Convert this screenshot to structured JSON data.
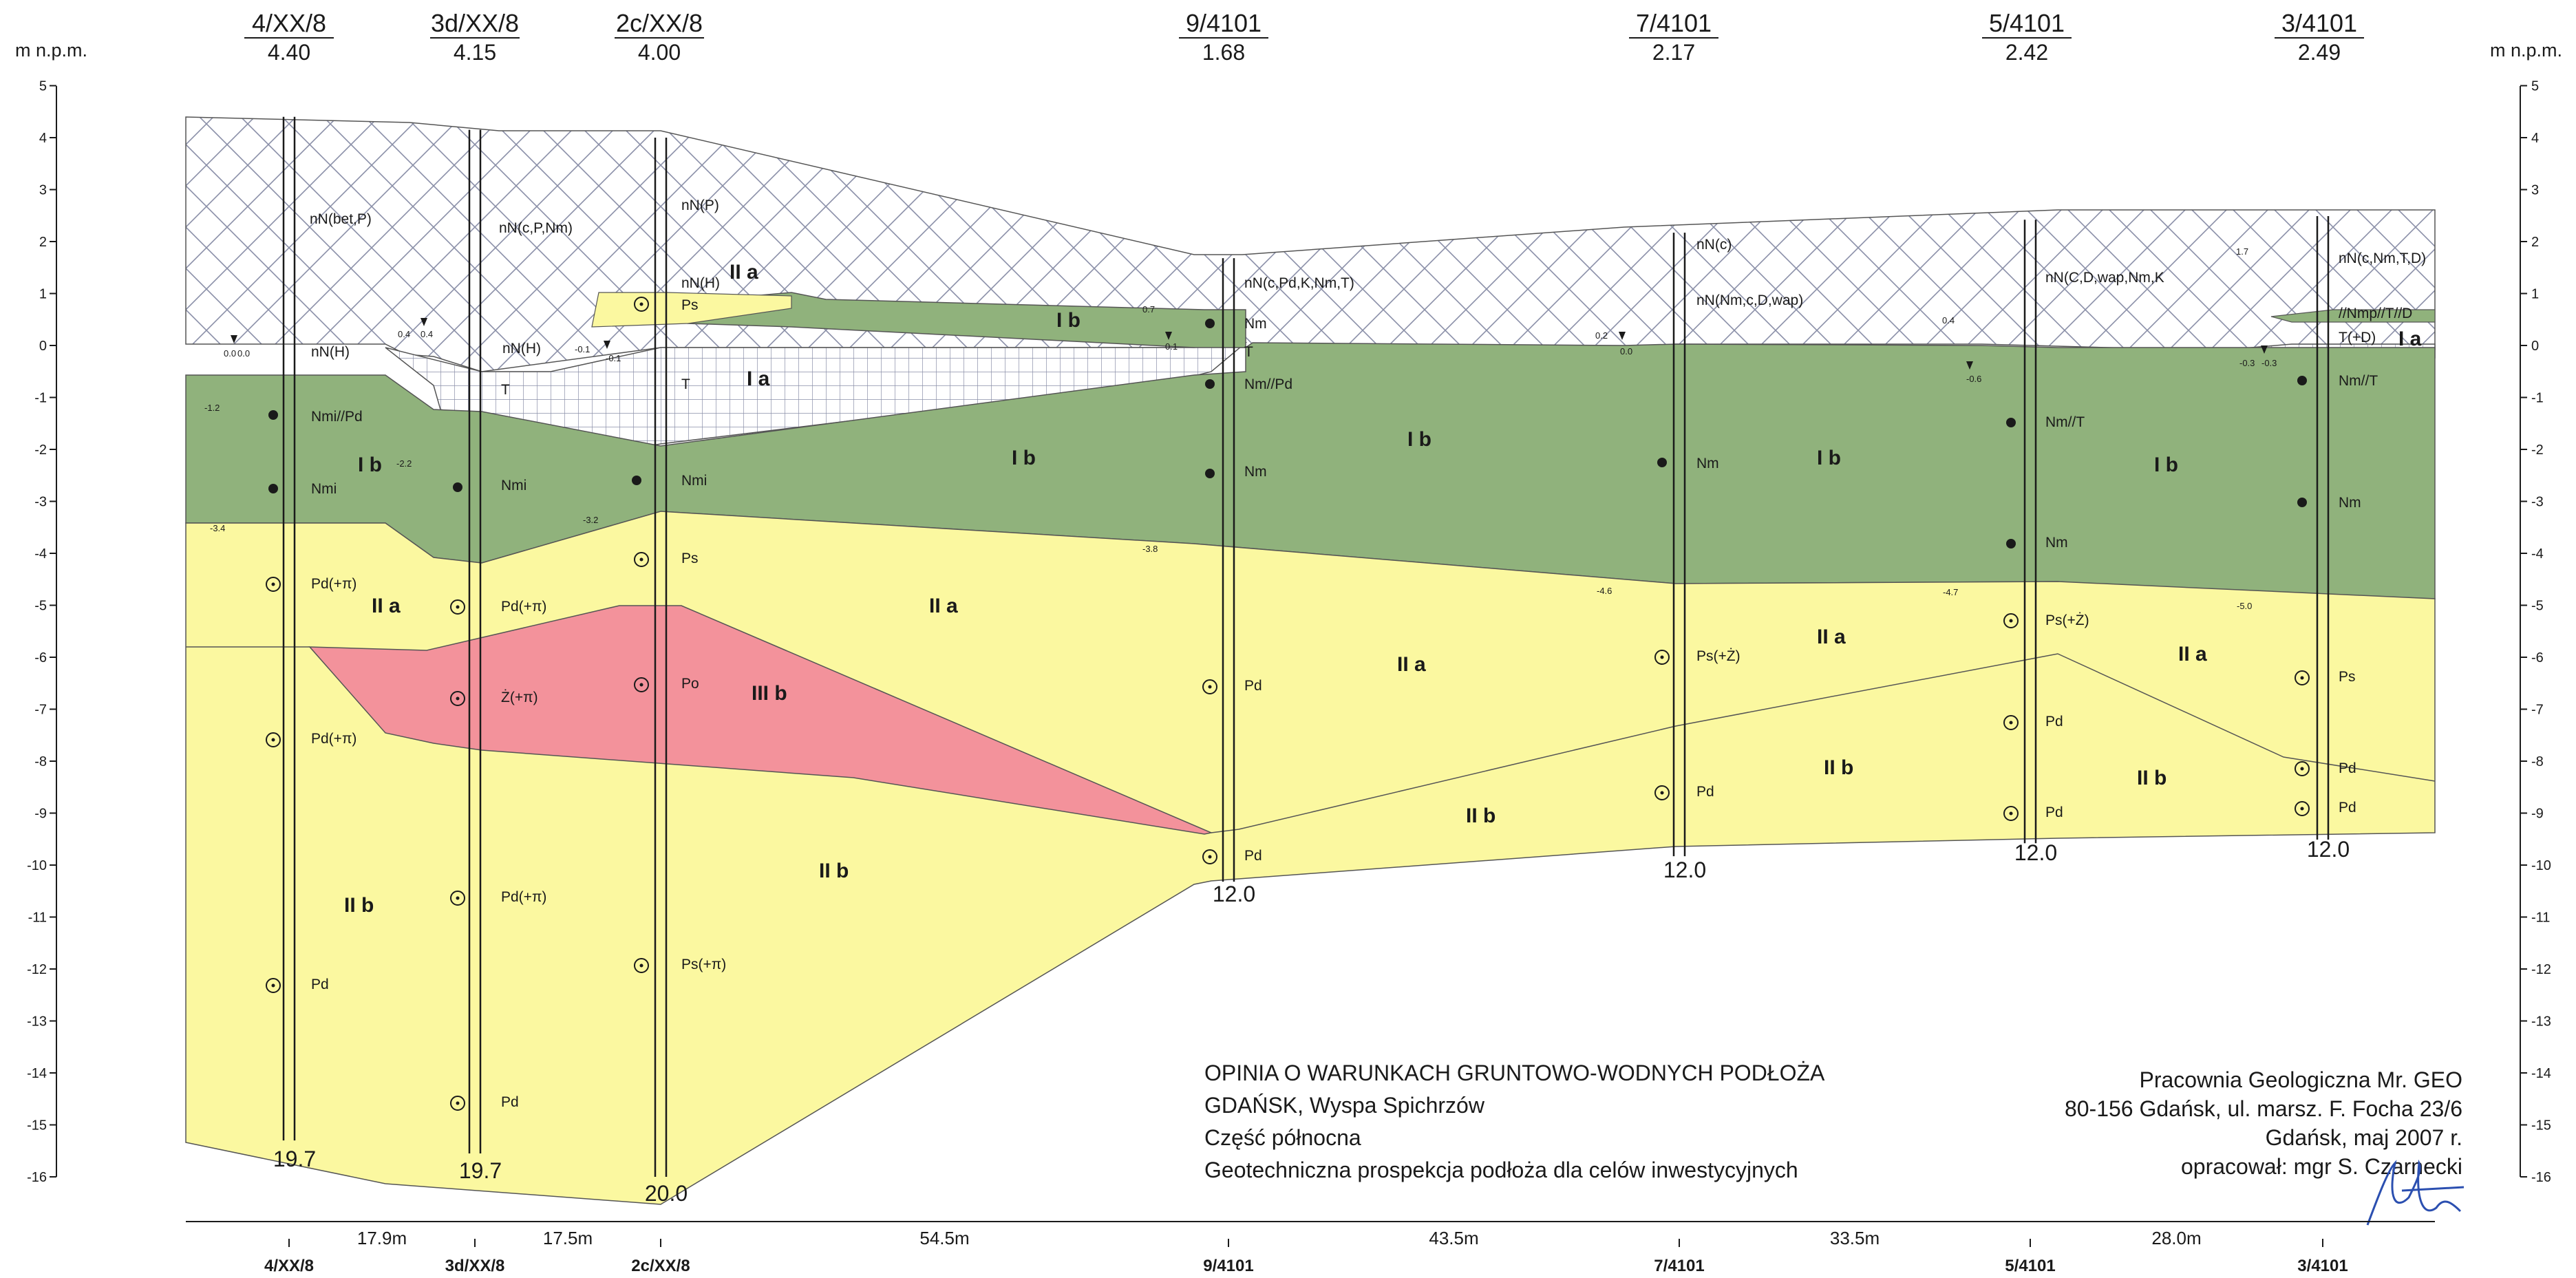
{
  "axis": {
    "left_label": "m n.p.m.",
    "right_label": "m n.p.m.",
    "range": [
      -16,
      5
    ],
    "ticks": [
      "5",
      "4",
      "3",
      "2",
      "1",
      "0",
      "-1",
      "-2",
      "-3",
      "-4",
      "-5",
      "-6",
      "-7",
      "-8",
      "-9",
      "-10",
      "-11",
      "-12",
      "-13",
      "-14",
      "-15",
      "-16"
    ]
  },
  "colors": {
    "fill_layer": "#ffffff",
    "Ia": "#ffffff",
    "Ib": "#90b27c",
    "IIa": "#fbf8a0",
    "IIb": "#fbf8a0",
    "IIIb": "#f3929b",
    "ink": "#1a1a1a",
    "signature": "#2b4fb0"
  },
  "boreholes": [
    {
      "id": "4/XX/8",
      "elev": "4.40",
      "depth": "19.7",
      "spacing_after": "17.9m"
    },
    {
      "id": "3d/XX/8",
      "elev": "4.15",
      "depth": "19.7",
      "spacing_after": "17.5m"
    },
    {
      "id": "2c/XX/8",
      "elev": "4.00",
      "depth": "20.0",
      "spacing_after": "54.5m"
    },
    {
      "id": "9/4101",
      "elev": "1.68",
      "depth": "12.0",
      "spacing_after": "43.5m"
    },
    {
      "id": "7/4101",
      "elev": "2.17",
      "depth": "12.0",
      "spacing_after": "33.5m"
    },
    {
      "id": "5/4101",
      "elev": "2.42",
      "depth": "12.0",
      "spacing_after": "28.0m"
    },
    {
      "id": "3/4101",
      "elev": "2.49",
      "depth": "12.0",
      "spacing_after": ""
    }
  ],
  "zones": [
    "I a",
    "I b",
    "II a",
    "II b",
    "III b"
  ],
  "water_marks": [
    "0.0",
    "0.0",
    "0.4",
    "0.4",
    "-0.1",
    "-0.1",
    "0.7",
    "0.1",
    "0.2",
    "0.0",
    "0.4",
    "-0.6",
    "1.7",
    "-0.3",
    "-0.3",
    "-1.2",
    "-2.2",
    "-3.2",
    "-3.4",
    "-3.8",
    "-4.6",
    "-4.7",
    "-5.0"
  ],
  "soil_labels": [
    "nN(bet,P)",
    "nN(c,P,Nm)",
    "nN(P)",
    "nN(H)",
    "nN(H)",
    "nN(H)",
    "T",
    "T",
    "Ps",
    "Nmi//Pd",
    "Nmi",
    "Nmi",
    "Nmi",
    "Ps",
    "Pd(+π)",
    "Pd(+π)",
    "Ż(+π)",
    "Po",
    "Pd(+π)",
    "Pd(+π)",
    "Ps(+π)",
    "Pd",
    "Pd",
    "nN(c,Pd,K,Nm,T)",
    "Nm",
    "T",
    "Nm//Pd",
    "Nm",
    "Pd",
    "Pd",
    "nN(c)",
    "nN(Nm,c,D,wap)",
    "Nm",
    "Ps(+Ż)",
    "Pd",
    "nN(C,D,wap,Nm,K",
    "Nm//T",
    "Nm",
    "Ps(+Ż)",
    "Pd",
    "Pd",
    "nN(c,Nm,T,D)",
    "//Nmp//T//D",
    "T(+D)",
    "Nm//T",
    "Nm",
    "Ps",
    "Pd",
    "Pd"
  ],
  "title": {
    "line1": "OPINIA O WARUNKACH GRUNTOWO-WODNYCH PODŁOŻA",
    "line2": "GDAŃSK, Wyspa Spichrzów",
    "line3": "Część północna",
    "line4": "Geotechniczna prospekcja podłoża dla celów inwestycyjnych"
  },
  "author": {
    "line1": "Pracownia Geologiczna Mr. GEO",
    "line2": "80-156 Gdańsk, ul. marsz. F. Focha 23/6",
    "line3": "Gdańsk, maj 2007 r.",
    "line4": "opracował: mgr S. Czarnecki"
  }
}
